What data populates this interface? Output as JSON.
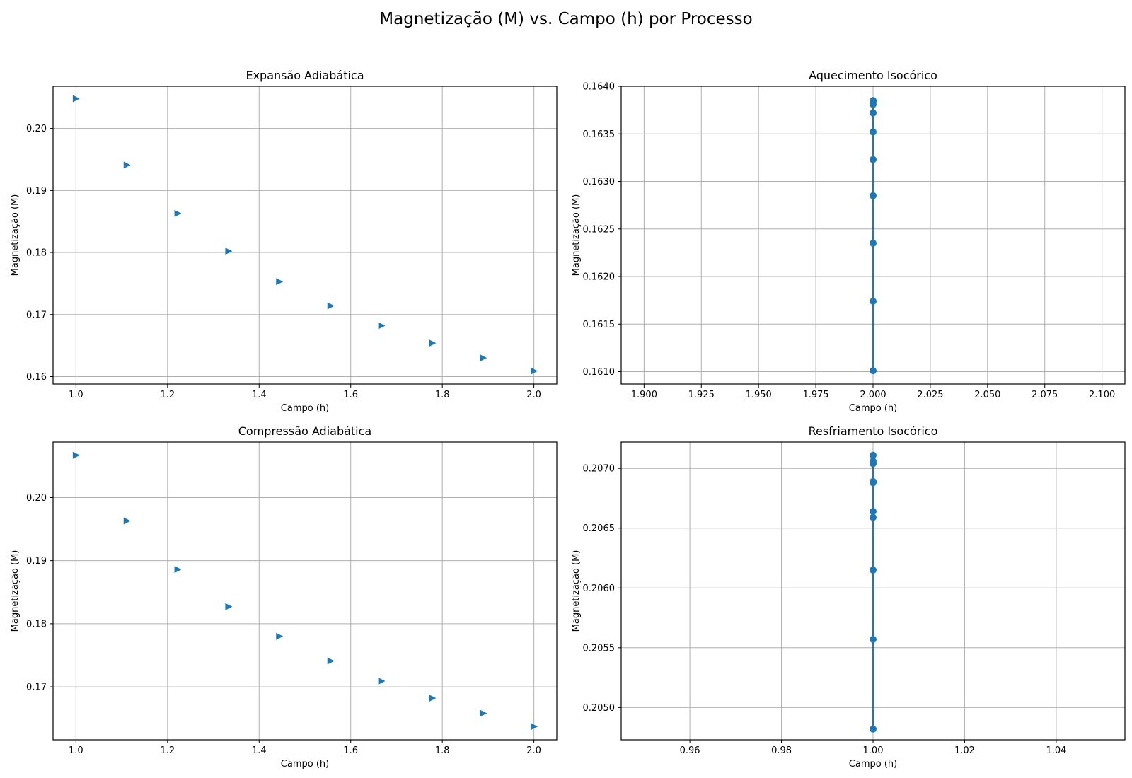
{
  "figure_title": "Magnetização (M) vs. Campo (h) por Processo",
  "colors": {
    "series": "#1f77b4",
    "grid": "#b0b0b0",
    "axes": "#000000"
  },
  "chart_data": [
    {
      "type": "scatter",
      "title": "Expansão Adiabática",
      "xlabel": "Campo (h)",
      "ylabel": "Magnetização (M)",
      "marker": "triangle-right",
      "connect": false,
      "grid": true,
      "xlim": [
        0.95,
        2.05
      ],
      "ylim": [
        0.1588,
        0.2068
      ],
      "xticks": [
        1.0,
        1.2,
        1.4,
        1.6,
        1.8,
        2.0
      ],
      "xtick_labels": [
        "1.0",
        "1.2",
        "1.4",
        "1.6",
        "1.8",
        "2.0"
      ],
      "yticks": [
        0.16,
        0.17,
        0.18,
        0.19,
        0.2
      ],
      "ytick_labels": [
        "0.16",
        "0.17",
        "0.18",
        "0.19",
        "0.20"
      ],
      "x": [
        1.0,
        1.111,
        1.222,
        1.333,
        1.444,
        1.556,
        1.667,
        1.778,
        1.889,
        2.0
      ],
      "y": [
        0.2048,
        0.1941,
        0.1863,
        0.1802,
        0.1753,
        0.1714,
        0.1682,
        0.1654,
        0.163,
        0.1609
      ]
    },
    {
      "type": "line",
      "title": "Aquecimento Isocórico",
      "xlabel": "Campo (h)",
      "ylabel": "Magnetização (M)",
      "marker": "circle",
      "connect": true,
      "grid": true,
      "xlim": [
        1.89,
        2.11
      ],
      "ylim": [
        0.16087,
        0.164
      ],
      "xticks": [
        1.9,
        1.925,
        1.95,
        1.975,
        2.0,
        2.025,
        2.05,
        2.075,
        2.1
      ],
      "xtick_labels": [
        "1.900",
        "1.925",
        "1.950",
        "1.975",
        "2.000",
        "2.025",
        "2.050",
        "2.075",
        "2.100"
      ],
      "yticks": [
        0.161,
        0.1615,
        0.162,
        0.1625,
        0.163,
        0.1635,
        0.164
      ],
      "ytick_labels": [
        "0.1610",
        "0.1615",
        "0.1620",
        "0.1625",
        "0.1630",
        "0.1635",
        "0.1640"
      ],
      "x": [
        2.0,
        2.0,
        2.0,
        2.0,
        2.0,
        2.0,
        2.0,
        2.0,
        2.0,
        2.0
      ],
      "y": [
        0.16101,
        0.16174,
        0.16235,
        0.16285,
        0.16323,
        0.16352,
        0.16372,
        0.16381,
        0.16384,
        0.16385
      ]
    },
    {
      "type": "scatter",
      "title": "Compressão Adiabática",
      "xlabel": "Campo (h)",
      "ylabel": "Magnetização (M)",
      "marker": "triangle-right",
      "connect": false,
      "grid": true,
      "xlim": [
        0.95,
        2.05
      ],
      "ylim": [
        0.1616,
        0.2088
      ],
      "xticks": [
        1.0,
        1.2,
        1.4,
        1.6,
        1.8,
        2.0
      ],
      "xtick_labels": [
        "1.0",
        "1.2",
        "1.4",
        "1.6",
        "1.8",
        "2.0"
      ],
      "yticks": [
        0.17,
        0.18,
        0.19,
        0.2
      ],
      "ytick_labels": [
        "0.17",
        "0.18",
        "0.19",
        "0.20"
      ],
      "x": [
        1.0,
        1.111,
        1.222,
        1.333,
        1.444,
        1.556,
        1.667,
        1.778,
        1.889,
        2.0
      ],
      "y": [
        0.2067,
        0.1963,
        0.1886,
        0.1827,
        0.178,
        0.1741,
        0.1709,
        0.1682,
        0.1658,
        0.1637
      ]
    },
    {
      "type": "line",
      "title": "Resfriamento Isocórico",
      "xlabel": "Campo (h)",
      "ylabel": "Magnetização (M)",
      "marker": "circle",
      "connect": true,
      "grid": true,
      "xlim": [
        0.945,
        1.055
      ],
      "ylim": [
        0.20473,
        0.20722
      ],
      "xticks": [
        0.96,
        0.98,
        1.0,
        1.02,
        1.04
      ],
      "xtick_labels": [
        "0.96",
        "0.98",
        "1.00",
        "1.02",
        "1.04"
      ],
      "yticks": [
        0.205,
        0.2055,
        0.206,
        0.2065,
        0.207
      ],
      "ytick_labels": [
        "0.2050",
        "0.2055",
        "0.2060",
        "0.2065",
        "0.2070"
      ],
      "x": [
        1.0,
        1.0,
        1.0,
        1.0,
        1.0,
        1.0,
        1.0,
        1.0,
        1.0,
        1.0
      ],
      "y": [
        0.20482,
        0.20557,
        0.20615,
        0.20659,
        0.20664,
        0.20688,
        0.20689,
        0.20704,
        0.20706,
        0.20711
      ]
    }
  ]
}
